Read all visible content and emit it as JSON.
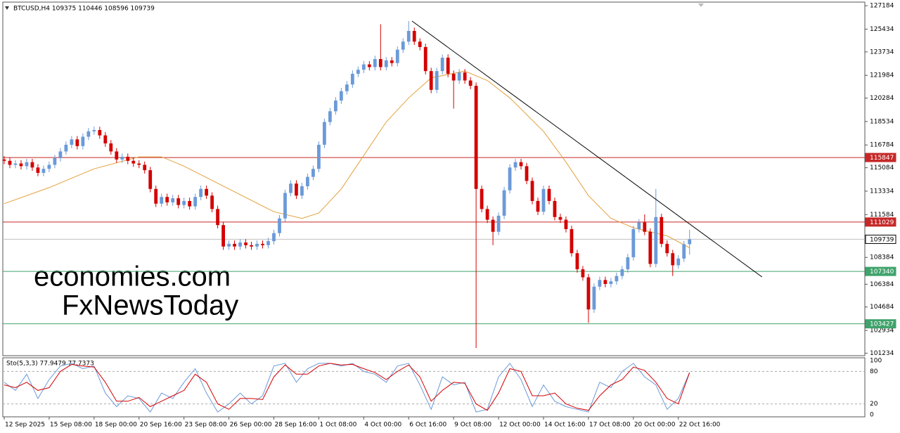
{
  "chart_data": {
    "type": "candlestick",
    "title": "BTCUSD,H4  109375 110446 108596 109739",
    "watermark": [
      "economies.com",
      "FxNewsToday"
    ],
    "categories": [
      "12 Sep 2025",
      null,
      null,
      null,
      null,
      null,
      null,
      null,
      "15 Sep 08:00",
      null,
      null,
      null,
      null,
      null,
      null,
      null,
      "18 Sep 00:00",
      null,
      null,
      null,
      null,
      null,
      null,
      null,
      "20 Sep 16:00",
      null,
      null,
      null,
      null,
      null,
      null,
      null,
      "23 Sep 08:00",
      null,
      null,
      null,
      null,
      null,
      null,
      null,
      "26 Sep 00:00",
      null,
      null,
      null,
      null,
      null,
      null,
      null,
      "28 Sep 16:00",
      null,
      null,
      null,
      null,
      null,
      null,
      null,
      "1 Oct 08:00",
      null,
      null,
      null,
      null,
      null,
      null,
      null,
      "4 Oct 00:00",
      null,
      null,
      null,
      null,
      null,
      null,
      null,
      "6 Oct 16:00",
      null,
      null,
      null,
      null,
      null,
      null,
      null,
      "9 Oct 08:00",
      null,
      null,
      null,
      null,
      null,
      null,
      null,
      "12 Oct 00:00",
      null,
      null,
      null,
      null,
      null,
      null,
      null,
      "14 Oct 16:00",
      null,
      null,
      null,
      null,
      null,
      null,
      null,
      "17 Oct 08:00",
      null,
      null,
      null,
      null,
      null,
      null,
      null,
      "20 Oct 00:00",
      null,
      null,
      null,
      null,
      null,
      null,
      null,
      "22 Oct 16:00",
      null,
      null
    ],
    "open": [
      115700,
      115600,
      115300,
      115400,
      115200,
      115500,
      115100,
      114700,
      115000,
      115300,
      115800,
      116300,
      116800,
      117200,
      116700,
      117400,
      117800,
      117900,
      117500,
      116900,
      116300,
      115700,
      115900,
      115600,
      115400,
      115300,
      114900,
      113500,
      112400,
      112900,
      112500,
      112800,
      112300,
      112600,
      112200,
      112900,
      113500,
      113000,
      112000,
      110800,
      109200,
      109400,
      109200,
      109500,
      109300,
      109200,
      109400,
      109300,
      109600,
      110200,
      111300,
      113200,
      113900,
      113000,
      113700,
      114400,
      115000,
      116800,
      118500,
      119300,
      120100,
      120800,
      121300,
      122100,
      122400,
      122800,
      122600,
      123200,
      122600,
      123100,
      122900,
      123900,
      124500,
      125300,
      124500,
      124100,
      122300,
      120900,
      122300,
      123300,
      122100,
      121600,
      122200,
      121600,
      121200,
      113500,
      112000,
      111200,
      110300,
      111500,
      113400,
      115100,
      115500,
      115200,
      114100,
      112600,
      111800,
      113500,
      112600,
      111400,
      111200,
      110500,
      108700,
      107500,
      106900,
      104500,
      106200,
      106700,
      106400,
      106600,
      107000,
      107500,
      108400,
      110500,
      111000,
      110300,
      107900,
      111400,
      109400,
      108700,
      107800,
      108300,
      109375
    ],
    "high": [
      115950,
      115850,
      115650,
      115650,
      115750,
      115750,
      115350,
      115250,
      115550,
      116050,
      116550,
      117050,
      117450,
      117450,
      117650,
      118050,
      118150,
      118150,
      117750,
      117150,
      116550,
      116150,
      116150,
      115850,
      115650,
      115550,
      115150,
      113750,
      113150,
      113150,
      113050,
      113050,
      112850,
      112850,
      113150,
      113750,
      113750,
      113250,
      112250,
      111050,
      109650,
      109650,
      109750,
      109750,
      109550,
      109650,
      109650,
      109850,
      110450,
      111550,
      113450,
      114150,
      114150,
      113950,
      114650,
      115250,
      117050,
      118750,
      119550,
      120350,
      121050,
      121550,
      122350,
      122650,
      123050,
      123050,
      123450,
      125800,
      123350,
      123350,
      124150,
      124750,
      126035,
      125550,
      124750,
      124350,
      122550,
      122550,
      123550,
      123550,
      122350,
      122450,
      122450,
      121850,
      121450,
      113750,
      112250,
      111450,
      111750,
      113650,
      115350,
      115750,
      115750,
      115450,
      114350,
      112850,
      113750,
      113750,
      112850,
      111650,
      111450,
      110750,
      108950,
      107750,
      107150,
      106450,
      106950,
      106950,
      106850,
      107250,
      107750,
      108650,
      110750,
      111250,
      111600,
      110550,
      113500,
      111650,
      109650,
      108950,
      108550,
      109625,
      110446
    ],
    "low": [
      115350,
      115050,
      115050,
      114950,
      114950,
      114850,
      114450,
      114450,
      114750,
      115050,
      115550,
      116050,
      116550,
      116450,
      116450,
      117150,
      117550,
      117250,
      116650,
      116050,
      115450,
      115450,
      115350,
      115150,
      115050,
      114650,
      113250,
      112150,
      112150,
      112250,
      112250,
      112050,
      112050,
      111950,
      111950,
      112650,
      112750,
      111750,
      110550,
      108950,
      108950,
      108950,
      108950,
      109050,
      108950,
      108950,
      109050,
      109050,
      109350,
      109950,
      111050,
      112950,
      112750,
      112750,
      113450,
      114150,
      114750,
      116550,
      118250,
      119050,
      119850,
      120550,
      121050,
      121850,
      122150,
      122350,
      122350,
      122350,
      122350,
      122650,
      122650,
      123650,
      124250,
      124250,
      123850,
      122050,
      120650,
      120650,
      122050,
      121850,
      119500,
      121350,
      121350,
      120950,
      101622,
      111750,
      110950,
      109300,
      110050,
      111250,
      113150,
      114850,
      114950,
      113850,
      112350,
      111550,
      111550,
      112350,
      111150,
      110950,
      110250,
      108450,
      107250,
      106650,
      103500,
      104250,
      105950,
      106150,
      106150,
      106350,
      106750,
      107250,
      108150,
      110250,
      110050,
      107650,
      107650,
      109150,
      108450,
      107000,
      107550,
      108050,
      108596
    ],
    "close": [
      115600,
      115300,
      115400,
      115200,
      115500,
      115100,
      114700,
      115000,
      115300,
      115800,
      116300,
      116800,
      117200,
      116700,
      117400,
      117800,
      117900,
      117500,
      116900,
      116300,
      115700,
      115900,
      115600,
      115400,
      115300,
      114900,
      113500,
      112400,
      112900,
      112500,
      112800,
      112300,
      112600,
      112200,
      112900,
      113500,
      113000,
      112000,
      110800,
      109200,
      109400,
      109200,
      109500,
      109300,
      109200,
      109400,
      109300,
      109600,
      110200,
      111300,
      113200,
      113900,
      113000,
      113700,
      114400,
      115000,
      116800,
      118500,
      119300,
      120100,
      120800,
      121300,
      122100,
      122400,
      122800,
      122600,
      123200,
      122600,
      123100,
      122900,
      123900,
      124500,
      125300,
      124500,
      124100,
      122300,
      120900,
      122300,
      123300,
      122100,
      121600,
      122200,
      121600,
      121200,
      113500,
      112000,
      111200,
      110300,
      111500,
      113400,
      115100,
      115500,
      115200,
      114100,
      112600,
      111800,
      113500,
      112600,
      111400,
      111200,
      110500,
      108700,
      107500,
      106900,
      104500,
      106200,
      106700,
      106400,
      106600,
      107000,
      107500,
      108400,
      110500,
      111000,
      110300,
      107900,
      111400,
      109400,
      108700,
      107800,
      108300,
      109375,
      109739
    ],
    "up_color": "#6b9ad8",
    "down_color": "#d40000",
    "xlim": [
      -0.25,
      153.2
    ],
    "ylim": [
      101100,
      127400
    ],
    "yticks": [
      101234,
      102934,
      104684,
      106384,
      108384,
      111584,
      113334,
      115084,
      116784,
      118534,
      120284,
      121984,
      123734,
      125434,
      127184
    ],
    "levels": [
      {
        "value": 115847,
        "color": "#c62828",
        "label_color": "#ffffff"
      },
      {
        "value": 111029,
        "color": "#c62828",
        "label_color": "#ffffff"
      },
      {
        "value": 109739,
        "color": "#c0c0c0",
        "label_color": "#000000"
      },
      {
        "value": 107340,
        "color": "#3fa36b",
        "label_color": "#ffffff"
      },
      {
        "value": 103427,
        "color": "#3fa36b",
        "label_color": "#ffffff"
      }
    ],
    "moving_average": {
      "color": "#e3a03c",
      "x": [
        0,
        8,
        16,
        24,
        28,
        32,
        40,
        48,
        53,
        56,
        60,
        64,
        68,
        72,
        76,
        82,
        86,
        90,
        96,
        100,
        104,
        108,
        112,
        118,
        122
      ],
      "values": [
        112400,
        113600,
        115000,
        115900,
        115900,
        115200,
        113500,
        111800,
        111300,
        111700,
        113500,
        116000,
        118500,
        120300,
        121800,
        122300,
        121600,
        120300,
        117800,
        115500,
        113000,
        111300,
        110600,
        110000,
        109100
      ]
    },
    "trendline": {
      "color": "#000000",
      "x": [
        72.6,
        134.9
      ],
      "values": [
        126035,
        106926
      ]
    },
    "stochastic": {
      "title": "Sto(5,3,3) 77.9479 77.7373",
      "ylim": [
        0,
        100
      ],
      "yticks": [
        0,
        20,
        80,
        100
      ],
      "x": [
        0,
        2,
        4,
        6,
        8,
        10,
        12,
        14,
        16,
        18,
        20,
        22,
        24,
        26,
        28,
        30,
        32,
        34,
        36,
        38,
        40,
        42,
        44,
        46,
        48,
        50,
        52,
        54,
        56,
        58,
        60,
        62,
        64,
        66,
        68,
        70,
        72,
        74,
        76,
        78,
        80,
        82,
        84,
        86,
        88,
        90,
        92,
        94,
        96,
        98,
        100,
        102,
        104,
        106,
        108,
        110,
        112,
        114,
        116,
        118,
        120,
        122
      ],
      "series": [
        {
          "color": "#6b9ad8",
          "values": [
            60,
            45,
            75,
            30,
            65,
            90,
            95,
            85,
            90,
            40,
            15,
            35,
            30,
            5,
            40,
            30,
            60,
            85,
            40,
            5,
            20,
            40,
            20,
            35,
            90,
            95,
            60,
            85,
            95,
            95,
            90,
            95,
            80,
            75,
            60,
            90,
            95,
            55,
            10,
            70,
            55,
            60,
            5,
            10,
            70,
            95,
            65,
            15,
            55,
            25,
            15,
            10,
            5,
            60,
            50,
            80,
            95,
            70,
            55,
            10,
            30,
            77.9479
          ]
        },
        {
          "color": "#d40000",
          "values": [
            55,
            50,
            60,
            45,
            50,
            80,
            93,
            90,
            88,
            60,
            25,
            25,
            32,
            15,
            25,
            35,
            45,
            75,
            60,
            20,
            10,
            30,
            30,
            28,
            70,
            92,
            75,
            75,
            90,
            95,
            92,
            93,
            85,
            78,
            65,
            80,
            92,
            70,
            25,
            45,
            60,
            58,
            20,
            8,
            40,
            85,
            80,
            35,
            35,
            40,
            20,
            12,
            8,
            35,
            55,
            65,
            88,
            82,
            60,
            30,
            20,
            77.7373
          ]
        }
      ]
    }
  }
}
